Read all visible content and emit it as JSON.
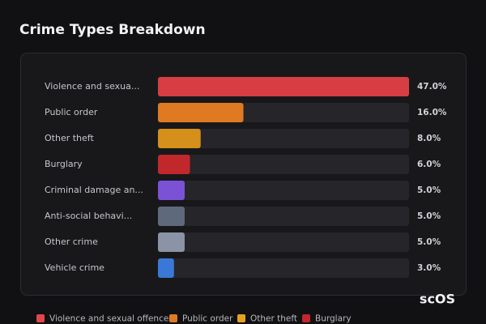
{
  "chart_data": {
    "type": "bar",
    "orientation": "horizontal",
    "title": "Crime Types Breakdown",
    "categories": [
      "Violence and sexua...",
      "Public order",
      "Other theft",
      "Burglary",
      "Criminal damage an...",
      "Anti-social behavi...",
      "Other crime",
      "Vehicle crime"
    ],
    "values": [
      47,
      16,
      8,
      6,
      5,
      5,
      5,
      3
    ],
    "value_labels": [
      "47.0%",
      "16.0%",
      "8.0%",
      "6.0%",
      "5.0%",
      "5.0%",
      "5.0%",
      "3.0%"
    ],
    "colors": [
      "#d63e43",
      "#e07a22",
      "#d4901a",
      "#c0282c",
      "#7b52d6",
      "#5e6a7c",
      "#8a94a6",
      "#3a78d8"
    ],
    "legend": [
      {
        "name": "Violence and sexual offences",
        "color": "#e0474c"
      },
      {
        "name": "Public order",
        "color": "#e07a22"
      },
      {
        "name": "Other theft",
        "color": "#e8a020"
      },
      {
        "name": "Burglary",
        "color": "#c0282c"
      }
    ],
    "watermark": "scOS"
  }
}
